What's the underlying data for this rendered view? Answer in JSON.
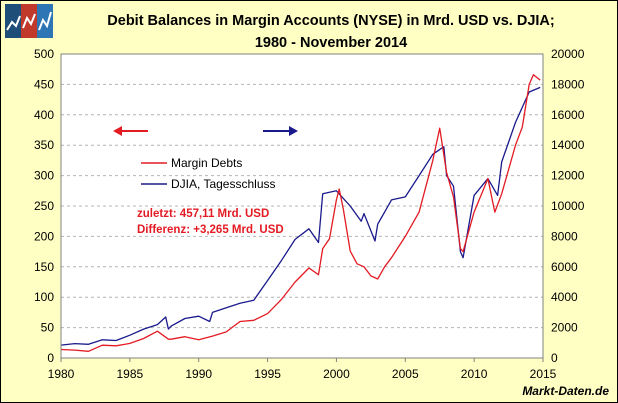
{
  "colors": {
    "margin": "#e31b23",
    "djia": "#1a1a8c",
    "background": "#ffffc4",
    "plot": "#ffffff",
    "grid": "#b4b4b4"
  },
  "logo": {
    "icon": "logo-chart-icon",
    "colors": [
      "#1f4e79",
      "#c0392b",
      "#2e75b6"
    ]
  },
  "brand": "Markt-Daten.de",
  "legend_arrows": {
    "left_color": "#e31b23",
    "right_color": "#1a1a8c"
  },
  "chart_data": {
    "type": "line",
    "title_line1": "Debit Balances in Margin Accounts (NYSE) in Mrd. USD vs. DJIA;",
    "title_line2": "1980 - November 2014",
    "xlim": [
      1980,
      2015
    ],
    "ylim": [
      0,
      500
    ],
    "y2lim": [
      0,
      20000
    ],
    "xticks": [
      "1980",
      "1985",
      "1990",
      "1995",
      "2000",
      "2005",
      "2010",
      "2015"
    ],
    "yticks": [
      "0",
      "50",
      "100",
      "150",
      "200",
      "250",
      "300",
      "350",
      "400",
      "450",
      "500"
    ],
    "y2ticks": [
      "0",
      "2000",
      "4000",
      "6000",
      "8000",
      "10000",
      "12000",
      "14000",
      "16000",
      "18000",
      "20000"
    ],
    "grid": true,
    "series": [
      {
        "name": "Margin Debts",
        "axis": "left",
        "x": [
          1980,
          1981,
          1982,
          1983,
          1984,
          1985,
          1986,
          1987,
          1987.8,
          1988,
          1989,
          1990,
          1991,
          1992,
          1993,
          1994,
          1995,
          1996,
          1997,
          1998,
          1998.7,
          1999,
          1999.5,
          2000,
          2000.2,
          2000.5,
          2001,
          2001.5,
          2002,
          2002.5,
          2003,
          2003.5,
          2004,
          2005,
          2006,
          2007,
          2007.5,
          2008,
          2008.5,
          2009,
          2009.2,
          2010,
          2011,
          2011.5,
          2012,
          2013,
          2013.5,
          2014,
          2014.3,
          2014.8
        ],
        "values": [
          14,
          13,
          11,
          21,
          20,
          24,
          32,
          44,
          31,
          31,
          35,
          30,
          36,
          43,
          60,
          62,
          73,
          96,
          125,
          148,
          137,
          180,
          196,
          260,
          278,
          245,
          176,
          155,
          150,
          135,
          130,
          150,
          165,
          200,
          240,
          325,
          378,
          305,
          265,
          180,
          175,
          240,
          295,
          240,
          270,
          350,
          380,
          450,
          466,
          457.11
        ]
      },
      {
        "name": "DJIA, Tagesschluss",
        "axis": "right",
        "x": [
          1980,
          1981,
          1982,
          1983,
          1984,
          1985,
          1986,
          1987,
          1987.6,
          1987.8,
          1988,
          1989,
          1990,
          1990.8,
          1991,
          1992,
          1993,
          1994,
          1995,
          1996,
          1997,
          1998,
          1998.7,
          1999,
          2000,
          2000.5,
          2001,
          2001.8,
          2002,
          2002.8,
          2003,
          2004,
          2005,
          2006,
          2007,
          2007.8,
          2008,
          2008.5,
          2009,
          2009.2,
          2010,
          2011,
          2011.7,
          2012,
          2013,
          2014,
          2014.8
        ],
        "values": [
          850,
          950,
          900,
          1200,
          1150,
          1500,
          1900,
          2200,
          2700,
          1900,
          2100,
          2600,
          2750,
          2400,
          3000,
          3300,
          3600,
          3800,
          5100,
          6400,
          7800,
          8500,
          7600,
          10800,
          11000,
          10500,
          10000,
          9000,
          9500,
          7700,
          8800,
          10400,
          10600,
          12000,
          13400,
          13900,
          12000,
          11300,
          7000,
          6600,
          10700,
          11800,
          10700,
          12900,
          15500,
          17500,
          17800
        ]
      }
    ],
    "annotations": [
      "zuletzt: 457,11 Mrd. USD",
      "Differenz: +3,265 Mrd. USD"
    ]
  }
}
